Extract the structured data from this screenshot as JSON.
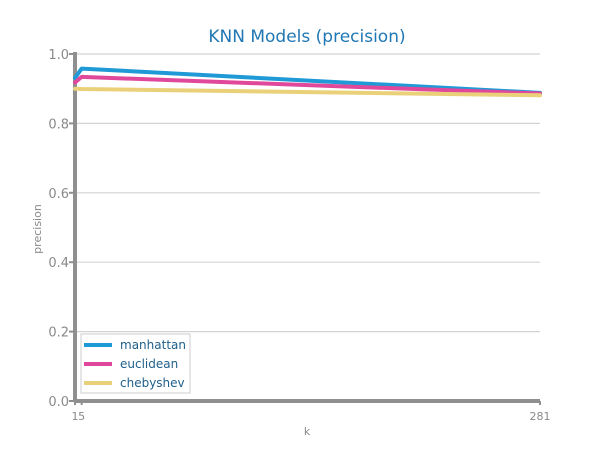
{
  "chart_data": {
    "type": "line",
    "title": "KNN Models (precision)",
    "xlabel": "k",
    "ylabel": "precision",
    "xlim": [
      1,
      281
    ],
    "ylim": [
      0,
      1
    ],
    "x_ticks": [
      "1",
      "5",
      "281"
    ],
    "y_ticks": [
      "0.0",
      "0.2",
      "0.4",
      "0.6",
      "0.8",
      "1.0"
    ],
    "grid": true,
    "legend_position": "bottom-left",
    "series": [
      {
        "name": "manhattan",
        "color": "#1f9ad6",
        "x": [
          1,
          5,
          281
        ],
        "y": [
          0.931,
          0.958,
          0.888
        ]
      },
      {
        "name": "euclidean",
        "color": "#e0489b",
        "x": [
          1,
          5,
          281
        ],
        "y": [
          0.918,
          0.934,
          0.886
        ]
      },
      {
        "name": "chebyshev",
        "color": "#ead179",
        "x": [
          1,
          5,
          281
        ],
        "y": [
          0.9,
          0.899,
          0.881
        ]
      }
    ]
  }
}
